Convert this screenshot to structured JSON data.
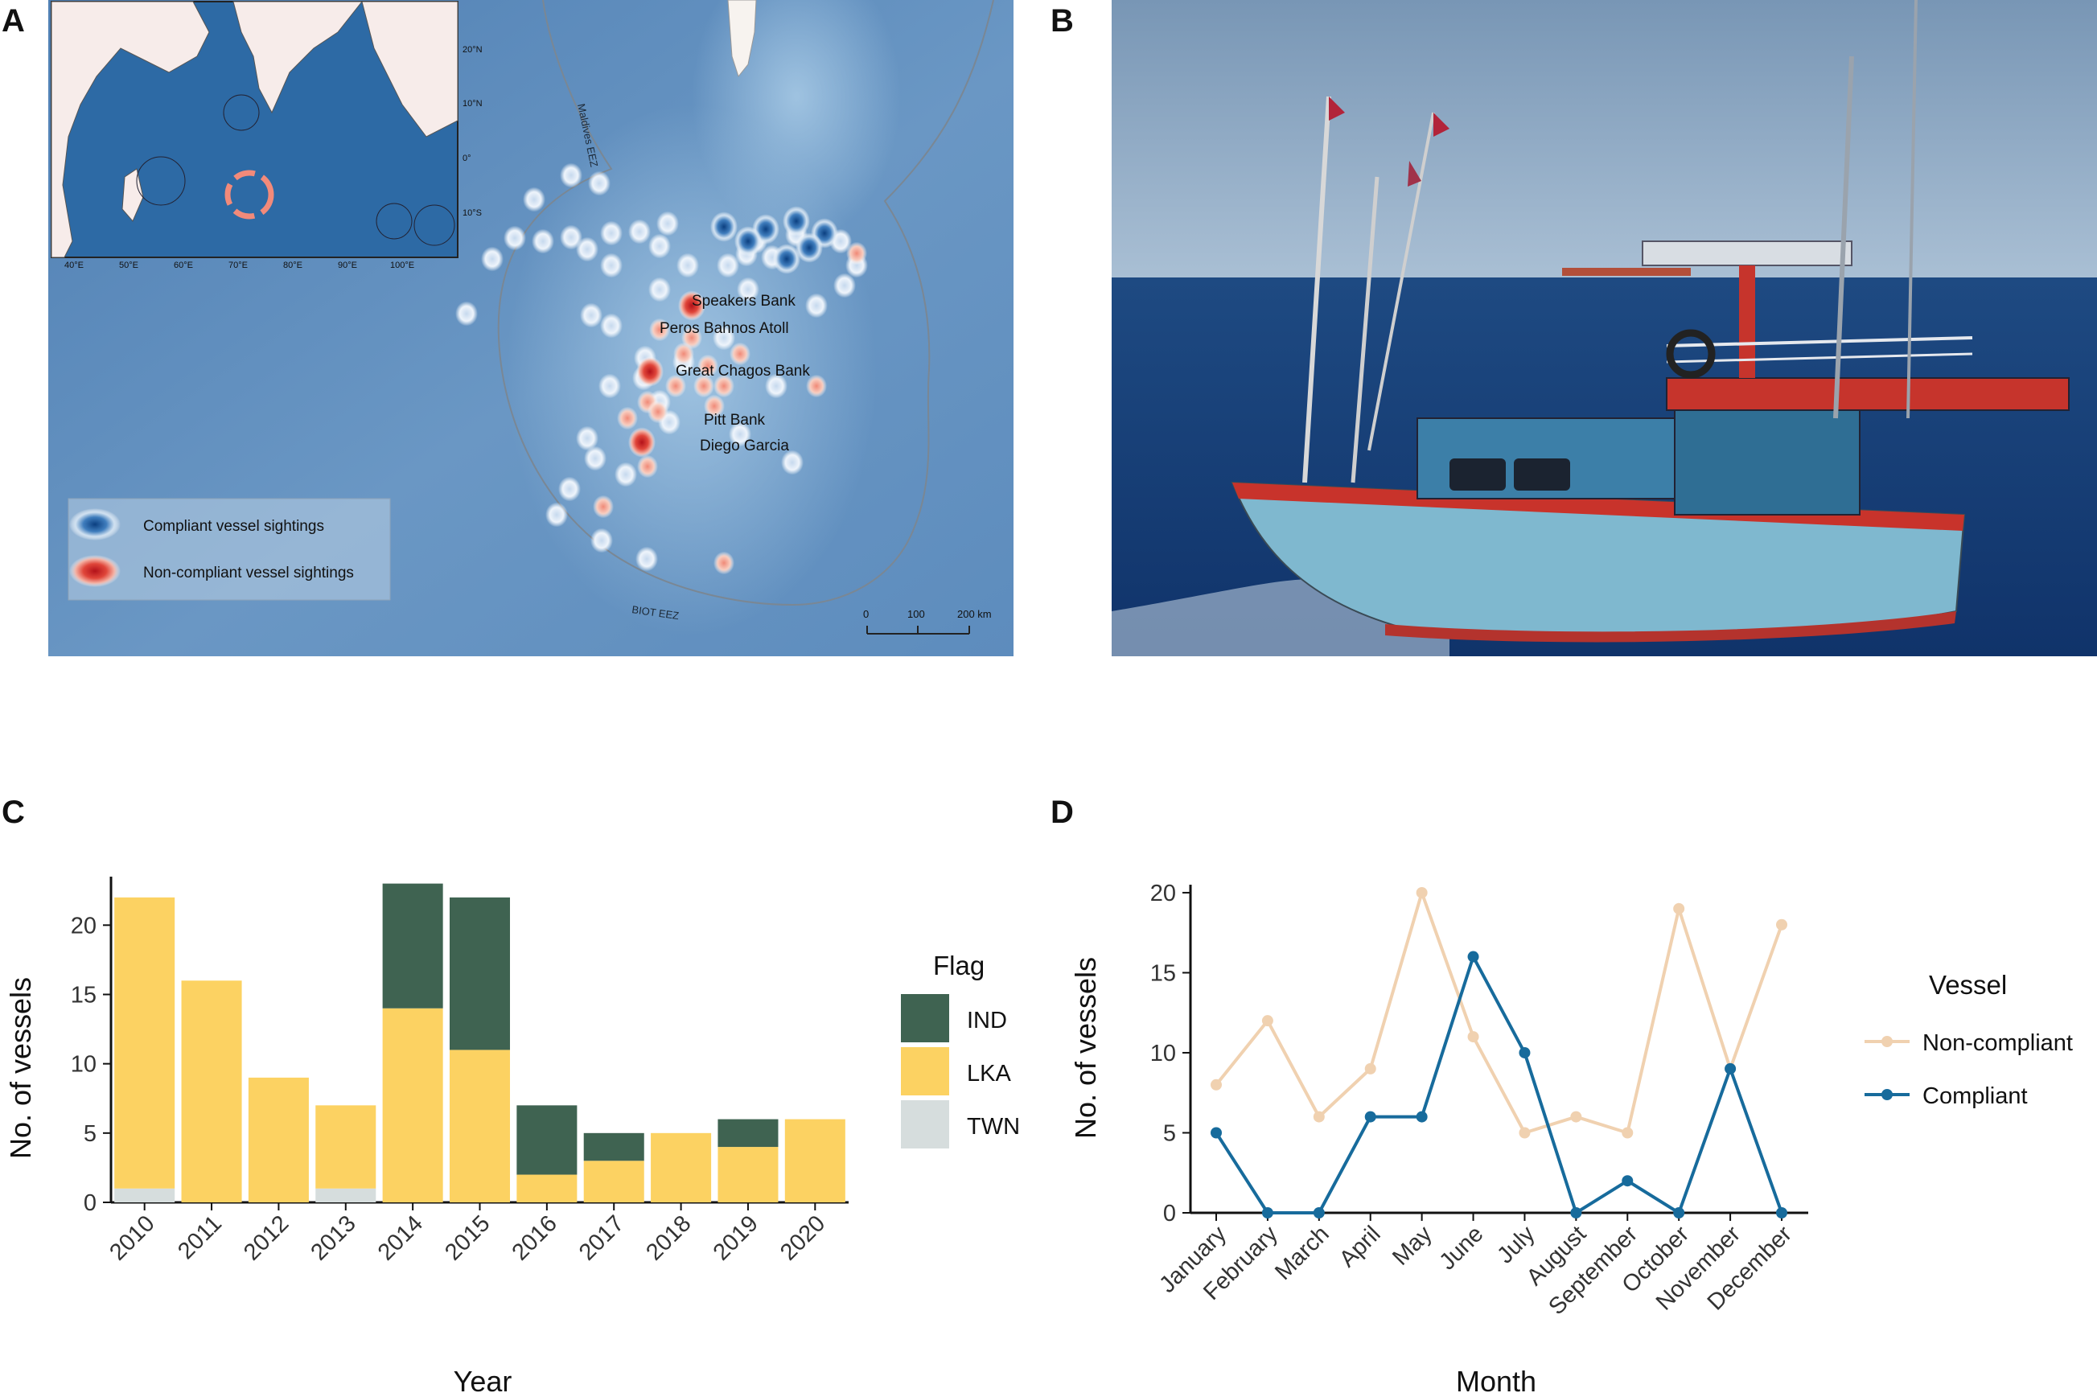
{
  "panels": {
    "a": "A",
    "b": "B",
    "c": "C",
    "d": "D"
  },
  "map": {
    "labels": {
      "speakers_bank": "Speakers Bank",
      "peros_bahnos": "Peros Bahnos Atoll",
      "great_chagos": "Great Chagos Bank",
      "pitt_bank": "Pitt Bank",
      "diego_garcia": "Diego Garcia",
      "maldives_eez": "Maldives EEZ",
      "biot_eez": "BIOT EEZ"
    },
    "legend": {
      "compliant": "Compliant vessel sightings",
      "noncompliant": "Non-compliant vessel sightings"
    },
    "scale": [
      "0",
      "100",
      "200 km"
    ],
    "inset": {
      "lat_labels": [
        "20°N",
        "10°N",
        "0°",
        "10°S"
      ],
      "lon_labels": [
        "40°E",
        "50°E",
        "60°E",
        "70°E",
        "80°E",
        "90°E",
        "100°E"
      ]
    },
    "colors": {
      "ocean": "#5b88b8",
      "compliant": "#0d4f8f",
      "noncompliant": "#d9302a"
    }
  },
  "chart_data": [
    {
      "type": "bar",
      "stacked": true,
      "xlabel": "Year",
      "ylabel": "No. of vessels",
      "ylim": [
        0,
        23.5
      ],
      "yticks": [
        0,
        5,
        10,
        15,
        20
      ],
      "categories": [
        "2010",
        "2011",
        "2012",
        "2013",
        "2014",
        "2015",
        "2016",
        "2017",
        "2018",
        "2019",
        "2020"
      ],
      "series": [
        {
          "name": "TWN",
          "color": "#d6dddd",
          "values": [
            1,
            0,
            0,
            1,
            0,
            0,
            0,
            0,
            0,
            0,
            0
          ]
        },
        {
          "name": "LKA",
          "color": "#fcd262",
          "values": [
            21,
            16,
            9,
            6,
            14,
            11,
            2,
            3,
            5,
            4,
            6
          ]
        },
        {
          "name": "IND",
          "color": "#3f6351",
          "values": [
            0,
            0,
            0,
            0,
            9,
            11,
            5,
            2,
            0,
            2,
            0
          ]
        }
      ],
      "legend": {
        "title": "Flag",
        "entries": [
          "IND",
          "LKA",
          "TWN"
        ],
        "position": "right"
      }
    },
    {
      "type": "line",
      "xlabel": "Month",
      "ylabel": "No. of vessels",
      "ylim": [
        0,
        20.5
      ],
      "yticks": [
        0,
        5,
        10,
        15,
        20
      ],
      "categories": [
        "January",
        "February",
        "March",
        "April",
        "May",
        "June",
        "July",
        "August",
        "September",
        "October",
        "November",
        "December"
      ],
      "series": [
        {
          "name": "Non-compliant",
          "color": "#f0d1b0",
          "values": [
            8,
            12,
            6,
            9,
            20,
            11,
            5,
            6,
            5,
            19,
            9,
            18
          ]
        },
        {
          "name": "Compliant",
          "color": "#176b9c",
          "values": [
            5,
            0,
            0,
            6,
            6,
            16,
            10,
            0,
            2,
            0,
            9,
            0
          ]
        }
      ],
      "legend": {
        "title": "Vessel",
        "entries": [
          "Non-compliant",
          "Compliant"
        ],
        "position": "right"
      }
    }
  ]
}
